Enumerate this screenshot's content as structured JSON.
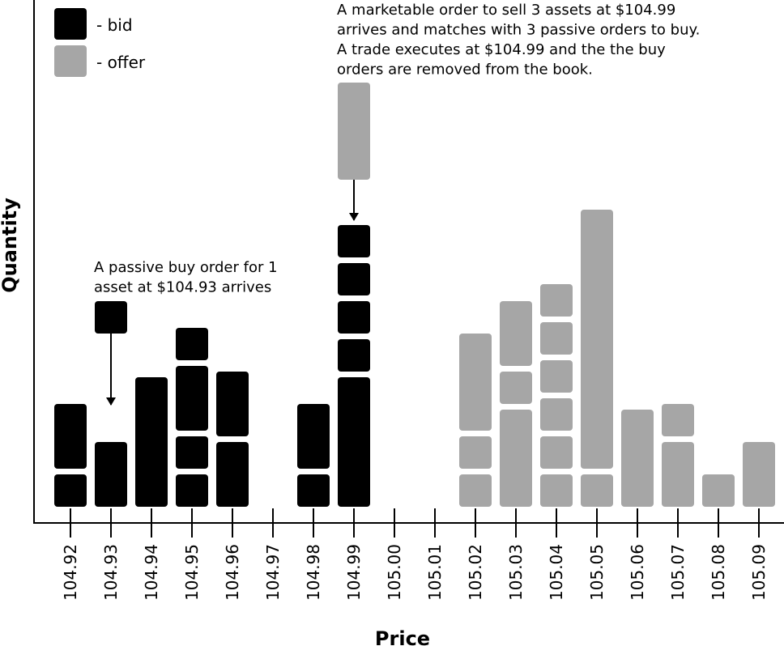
{
  "chart_data": {
    "type": "order-book",
    "x_label": "Price",
    "y_label": "Quantity",
    "categories": [
      "104.92",
      "104.93",
      "104.94",
      "104.95",
      "104.96",
      "104.97",
      "104.98",
      "104.99",
      "105.00",
      "105.01",
      "105.02",
      "105.03",
      "105.04",
      "105.05",
      "105.06",
      "105.07",
      "105.08",
      "105.09"
    ],
    "series": [
      {
        "name": "- bid",
        "color": "#000000",
        "values": [
          [
            1,
            2
          ],
          [
            2
          ],
          [
            4
          ],
          [
            1,
            1,
            2,
            1
          ],
          [
            2,
            2
          ],
          [],
          [
            1,
            2
          ],
          [
            4,
            1,
            1,
            1,
            1
          ],
          [],
          [],
          [],
          [],
          [],
          [],
          [],
          [],
          [],
          []
        ]
      },
      {
        "name": "- offer",
        "color": "#a6a6a6",
        "values": [
          [],
          [],
          [],
          [],
          [],
          [],
          [],
          [],
          [],
          [],
          [
            1,
            1,
            3
          ],
          [
            3,
            1,
            2
          ],
          [
            1,
            1,
            1,
            1,
            1,
            1
          ],
          [
            1,
            8
          ],
          [
            3
          ],
          [
            2,
            1
          ],
          [
            1
          ],
          [
            2
          ]
        ]
      }
    ],
    "annotations": [
      {
        "lines": [
          "A passive buy order for 1",
          "asset at $104.93 arrives"
        ],
        "size": 1,
        "color": "#000000"
      },
      {
        "lines": [
          "A marketable order to sell 3 assets at $104.99",
          "arrives and matches with 3 passive orders to buy.",
          "A trade executes at $104.99 and the the buy",
          "orders are removed from the book."
        ],
        "size": 3,
        "color": "#a6a6a6"
      }
    ]
  }
}
